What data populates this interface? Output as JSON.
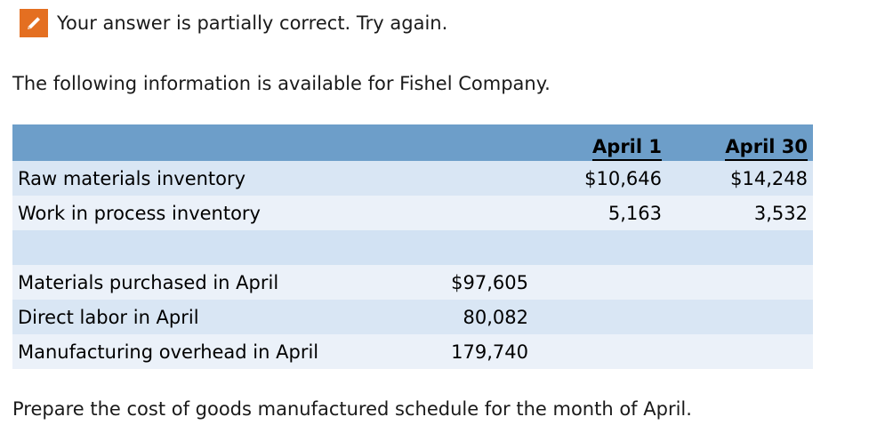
{
  "status": {
    "icon": "pencil-icon",
    "icon_color": "#e46f21",
    "message": "Your answer is partially correct.  Try again."
  },
  "intro": "The following information is available for Fishel Company.",
  "table": {
    "columns": [
      "April 1",
      "April 30"
    ],
    "inventory_rows": [
      {
        "label": "Raw materials inventory",
        "april1": "$10,646",
        "april30": "$14,248"
      },
      {
        "label": "Work in process inventory",
        "april1": "5,163",
        "april30": "3,532"
      }
    ],
    "activity_rows": [
      {
        "label": "Materials purchased in April",
        "amount": "$97,605"
      },
      {
        "label": "Direct labor in April",
        "amount": "80,082"
      },
      {
        "label": "Manufacturing overhead in April",
        "amount": "179,740"
      }
    ],
    "header_color": "#6d9ec9"
  },
  "instruction": "Prepare the cost of goods manufactured schedule for the month of April."
}
